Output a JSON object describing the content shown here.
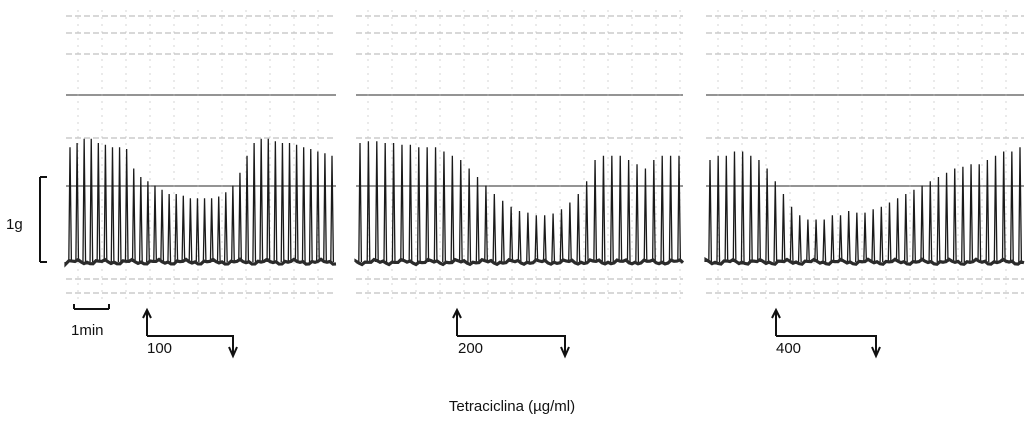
{
  "chart_data": {
    "type": "line",
    "xlabel": "Tetraciclina (µg/ml)",
    "scale_bars": {
      "force_label": "1g",
      "time_label": "1min"
    },
    "panels": [
      {
        "dose_label": "100",
        "description": "contraction amplitude (g) per twitch; drug washes in at arrow, washed out at down-arrow",
        "amplitudes": [
          1.35,
          1.4,
          1.45,
          1.45,
          1.4,
          1.38,
          1.35,
          1.35,
          1.33,
          1.1,
          1.0,
          0.95,
          0.9,
          0.85,
          0.8,
          0.8,
          0.78,
          0.75,
          0.75,
          0.75,
          0.75,
          0.77,
          0.82,
          0.9,
          1.05,
          1.25,
          1.4,
          1.45,
          1.45,
          1.42,
          1.4,
          1.4,
          1.38,
          1.35,
          1.33,
          1.3,
          1.28,
          1.25
        ]
      },
      {
        "dose_label": "200",
        "description": "contraction amplitude (g) per twitch",
        "amplitudes": [
          1.4,
          1.42,
          1.42,
          1.4,
          1.4,
          1.38,
          1.38,
          1.35,
          1.35,
          1.35,
          1.3,
          1.25,
          1.2,
          1.1,
          1.0,
          0.9,
          0.8,
          0.72,
          0.65,
          0.6,
          0.58,
          0.55,
          0.55,
          0.57,
          0.62,
          0.7,
          0.8,
          0.95,
          1.2,
          1.25,
          1.25,
          1.25,
          1.2,
          1.15,
          1.1,
          1.2,
          1.25,
          1.25,
          1.25
        ]
      },
      {
        "dose_label": "400",
        "description": "contraction amplitude (g) per twitch",
        "amplitudes": [
          1.2,
          1.25,
          1.25,
          1.3,
          1.3,
          1.25,
          1.2,
          1.1,
          0.95,
          0.8,
          0.65,
          0.55,
          0.5,
          0.5,
          0.5,
          0.55,
          0.55,
          0.6,
          0.58,
          0.58,
          0.62,
          0.65,
          0.7,
          0.75,
          0.8,
          0.85,
          0.9,
          0.95,
          1.0,
          1.05,
          1.1,
          1.12,
          1.15,
          1.15,
          1.2,
          1.25,
          1.3,
          1.3,
          1.35
        ]
      }
    ]
  }
}
